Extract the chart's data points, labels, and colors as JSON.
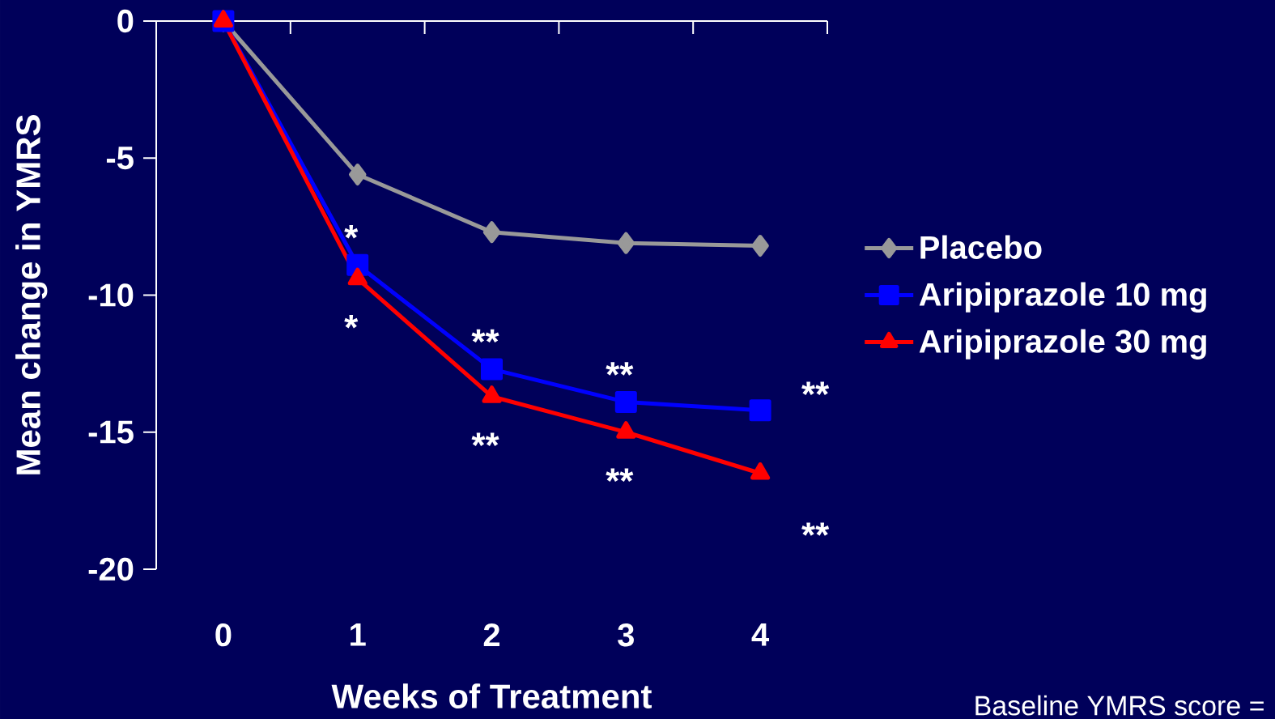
{
  "chart_data": {
    "type": "line",
    "xlabel": "Weeks of Treatment",
    "ylabel": "Mean change in YMRS",
    "categories": [
      "0",
      "1",
      "2",
      "3",
      "4"
    ],
    "series": [
      {
        "name": "Placebo",
        "color": "#999999",
        "marker": "diamond",
        "values": [
          0,
          -5.6,
          -7.7,
          -8.1,
          -8.2
        ]
      },
      {
        "name": "Aripiprazole 10 mg",
        "color": "#0000ff",
        "marker": "square",
        "values": [
          0,
          -8.9,
          -12.7,
          -13.9,
          -14.2
        ]
      },
      {
        "name": "Aripiprazole 30 mg",
        "color": "#ff0000",
        "marker": "triangle",
        "values": [
          0,
          -9.4,
          -13.7,
          -15.0,
          -16.5
        ]
      }
    ],
    "ylim": [
      -20,
      0
    ],
    "yticks": [
      -20,
      -15,
      -10,
      -5,
      0
    ],
    "grid": false,
    "legend": "right",
    "annotations": [
      {
        "text": "*",
        "x": "1",
        "y": -8.9
      },
      {
        "text": "*",
        "x": "1",
        "y": -9.4
      },
      {
        "text": "**",
        "x": "2",
        "y": -12.7
      },
      {
        "text": "**",
        "x": "2",
        "y": -13.7
      },
      {
        "text": "**",
        "x": "3",
        "y": -13.9
      },
      {
        "text": "**",
        "x": "3",
        "y": -15.0
      },
      {
        "text": "**",
        "x": "4",
        "y": -14.2
      },
      {
        "text": "**",
        "x": "4",
        "y": -16.5
      },
      "Baseline YMRS score ="
    ]
  }
}
